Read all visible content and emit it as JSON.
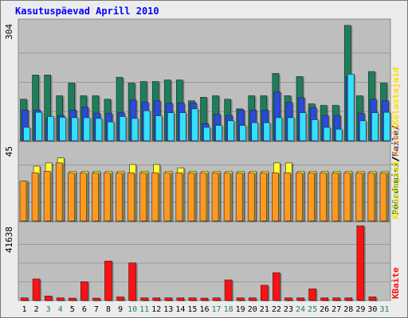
{
  "title": "Kasutuspäevad Aprill 2010",
  "colors": {
    "visits": "#1d7f5a",
    "pages": "#2a4bd7",
    "hits": "#33e0ff",
    "bandwidth_yellow": "#ffff33",
    "bandwidth_orange": "#ff9922",
    "kbytes": "#ff1111",
    "panel_bg": "#bebebe",
    "frame_bg": "#ececec"
  },
  "right_labels": {
    "top": [
      {
        "text": "Pöördumisi",
        "color": "#1d7f5a"
      },
      {
        "text": "/",
        "color": "#000000"
      },
      {
        "text": "Faile",
        "color": "#2a4bd7"
      },
      {
        "text": "/",
        "color": "#000000"
      },
      {
        "text": "Külastajaid",
        "color": "#ffdd00"
      }
    ],
    "middle": [
      {
        "text": "Külastajaid",
        "color": "#ffdd00"
      },
      {
        "text": "/",
        "color": "#000000"
      },
      {
        "text": "Arvuti",
        "color": "#ff9922"
      }
    ],
    "bottom": [
      {
        "text": "KBaite",
        "color": "#ff1111"
      }
    ]
  },
  "chart_data": [
    {
      "type": "bar",
      "name": "top-panel",
      "ymax_label": "304",
      "ylim": [
        0,
        304
      ],
      "categories": [
        "1",
        "2",
        "3",
        "4",
        "5",
        "6",
        "7",
        "8",
        "9",
        "10",
        "11",
        "12",
        "13",
        "14",
        "15",
        "16",
        "17",
        "18",
        "19",
        "20",
        "21",
        "22",
        "23",
        "24",
        "25",
        "26",
        "27",
        "28",
        "29",
        "30",
        "31"
      ],
      "series": [
        {
          "key": "visits",
          "values": [
            108,
            171,
            171,
            117,
            150,
            117,
            117,
            108,
            165,
            150,
            154,
            154,
            158,
            158,
            104,
            113,
            117,
            108,
            83,
            117,
            117,
            175,
            117,
            167,
            96,
            92,
            92,
            300,
            117,
            180,
            150
          ]
        },
        {
          "key": "pages",
          "values": [
            80,
            80,
            58,
            66,
            80,
            87,
            71,
            71,
            73,
            106,
            100,
            104,
            98,
            98,
            98,
            45,
            69,
            66,
            80,
            80,
            80,
            127,
            100,
            112,
            86,
            66,
            66,
            166,
            71,
            108,
            104
          ]
        },
        {
          "key": "hits",
          "values": [
            35,
            74,
            63,
            61,
            60,
            60,
            58,
            49,
            63,
            58,
            78,
            65,
            73,
            73,
            83,
            35,
            40,
            52,
            40,
            47,
            47,
            60,
            60,
            73,
            55,
            35,
            30,
            173,
            52,
            73,
            74
          ]
        }
      ]
    },
    {
      "type": "bar",
      "name": "middle-panel",
      "ymax_label": "45",
      "ylim": [
        0,
        45
      ],
      "categories": [
        "1",
        "2",
        "3",
        "4",
        "5",
        "6",
        "7",
        "8",
        "9",
        "10",
        "11",
        "12",
        "13",
        "14",
        "15",
        "16",
        "17",
        "18",
        "19",
        "20",
        "21",
        "22",
        "23",
        "24",
        "25",
        "26",
        "27",
        "28",
        "29",
        "30",
        "31"
      ],
      "series": [
        {
          "key": "visitors",
          "values": [
            24,
            33,
            35,
            38,
            30,
            30,
            30,
            30,
            30,
            34,
            30,
            34,
            30,
            32,
            30,
            30,
            30,
            30,
            30,
            30,
            30,
            35,
            35,
            30,
            30,
            30,
            30,
            30,
            30,
            30,
            30
          ]
        },
        {
          "key": "hosts",
          "values": [
            24,
            29,
            30,
            35,
            29,
            29,
            29,
            29,
            29,
            29,
            29,
            29,
            29,
            29,
            29,
            29,
            29,
            29,
            29,
            29,
            29,
            29,
            29,
            29,
            29,
            29,
            29,
            29,
            29,
            29,
            29
          ]
        }
      ]
    },
    {
      "type": "bar",
      "name": "bottom-panel",
      "ymax_label": "41638",
      "ylim": [
        0,
        41638
      ],
      "categories": [
        "1",
        "2",
        "3",
        "4",
        "5",
        "6",
        "7",
        "8",
        "9",
        "10",
        "11",
        "12",
        "13",
        "14",
        "15",
        "16",
        "17",
        "18",
        "19",
        "20",
        "21",
        "22",
        "23",
        "24",
        "25",
        "26",
        "27",
        "28",
        "29",
        "30",
        "31"
      ],
      "series": [
        {
          "key": "kbytes",
          "values": [
            1500,
            12000,
            2500,
            1500,
            1200,
            10500,
            1200,
            22000,
            2000,
            21000,
            1500,
            1500,
            1500,
            1500,
            1500,
            1000,
            1500,
            11500,
            1500,
            1500,
            8500,
            15500,
            1500,
            1500,
            6500,
            1500,
            1500,
            1500,
            41638,
            2000,
            0
          ]
        }
      ]
    }
  ],
  "xtick_colors": {
    "weekend": "#1d7f5a",
    "weekday": "#000000",
    "weekend_days": [
      "3",
      "4",
      "10",
      "11",
      "17",
      "18",
      "24",
      "25",
      "31"
    ]
  }
}
